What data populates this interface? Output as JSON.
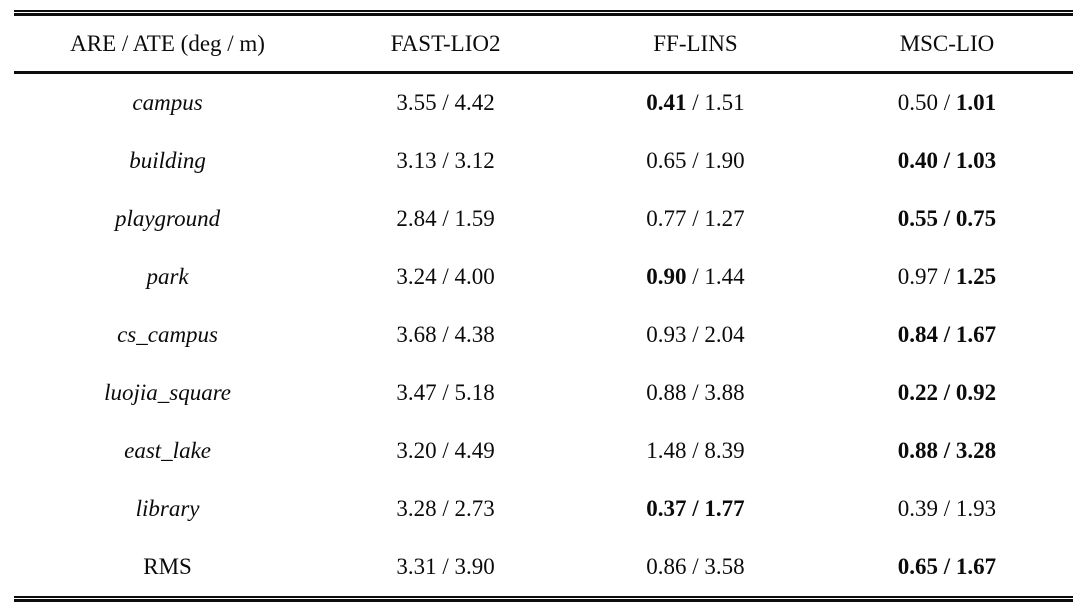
{
  "table": {
    "headers": [
      "ARE / ATE (deg / m)",
      "FAST-LIO2",
      "FF-LINS",
      "MSC-LIO"
    ],
    "separator": " / ",
    "rows": [
      {
        "dataset": "campus",
        "italic": true,
        "cells": [
          {
            "are": "3.55",
            "are_bold": false,
            "ate": "4.42",
            "ate_bold": false
          },
          {
            "are": "0.41",
            "are_bold": true,
            "ate": "1.51",
            "ate_bold": false
          },
          {
            "are": "0.50",
            "are_bold": false,
            "ate": "1.01",
            "ate_bold": true
          }
        ]
      },
      {
        "dataset": "building",
        "italic": true,
        "cells": [
          {
            "are": "3.13",
            "are_bold": false,
            "ate": "3.12",
            "ate_bold": false
          },
          {
            "are": "0.65",
            "are_bold": false,
            "ate": "1.90",
            "ate_bold": false
          },
          {
            "are": "0.40",
            "are_bold": true,
            "ate": "1.03",
            "ate_bold": true
          }
        ]
      },
      {
        "dataset": "playground",
        "italic": true,
        "cells": [
          {
            "are": "2.84",
            "are_bold": false,
            "ate": "1.59",
            "ate_bold": false
          },
          {
            "are": "0.77",
            "are_bold": false,
            "ate": "1.27",
            "ate_bold": false
          },
          {
            "are": "0.55",
            "are_bold": true,
            "ate": "0.75",
            "ate_bold": true
          }
        ]
      },
      {
        "dataset": "park",
        "italic": true,
        "cells": [
          {
            "are": "3.24",
            "are_bold": false,
            "ate": "4.00",
            "ate_bold": false
          },
          {
            "are": "0.90",
            "are_bold": true,
            "ate": "1.44",
            "ate_bold": false
          },
          {
            "are": "0.97",
            "are_bold": false,
            "ate": "1.25",
            "ate_bold": true
          }
        ]
      },
      {
        "dataset": "cs_campus",
        "italic": true,
        "cells": [
          {
            "are": "3.68",
            "are_bold": false,
            "ate": "4.38",
            "ate_bold": false
          },
          {
            "are": "0.93",
            "are_bold": false,
            "ate": "2.04",
            "ate_bold": false
          },
          {
            "are": "0.84",
            "are_bold": true,
            "ate": "1.67",
            "ate_bold": true
          }
        ]
      },
      {
        "dataset": "luojia_square",
        "italic": true,
        "cells": [
          {
            "are": "3.47",
            "are_bold": false,
            "ate": "5.18",
            "ate_bold": false
          },
          {
            "are": "0.88",
            "are_bold": false,
            "ate": "3.88",
            "ate_bold": false
          },
          {
            "are": "0.22",
            "are_bold": true,
            "ate": "0.92",
            "ate_bold": true
          }
        ]
      },
      {
        "dataset": "east_lake",
        "italic": true,
        "cells": [
          {
            "are": "3.20",
            "are_bold": false,
            "ate": "4.49",
            "ate_bold": false
          },
          {
            "are": "1.48",
            "are_bold": false,
            "ate": "8.39",
            "ate_bold": false
          },
          {
            "are": "0.88",
            "are_bold": true,
            "ate": "3.28",
            "ate_bold": true
          }
        ]
      },
      {
        "dataset": "library",
        "italic": true,
        "cells": [
          {
            "are": "3.28",
            "are_bold": false,
            "ate": "2.73",
            "ate_bold": false
          },
          {
            "are": "0.37",
            "are_bold": true,
            "ate": "1.77",
            "ate_bold": true
          },
          {
            "are": "0.39",
            "are_bold": false,
            "ate": "1.93",
            "ate_bold": false
          }
        ]
      },
      {
        "dataset": "RMS",
        "italic": false,
        "cells": [
          {
            "are": "3.31",
            "are_bold": false,
            "ate": "3.90",
            "ate_bold": false
          },
          {
            "are": "0.86",
            "are_bold": false,
            "ate": "3.58",
            "ate_bold": false
          },
          {
            "are": "0.65",
            "are_bold": true,
            "ate": "1.67",
            "ate_bold": true
          }
        ]
      }
    ]
  }
}
